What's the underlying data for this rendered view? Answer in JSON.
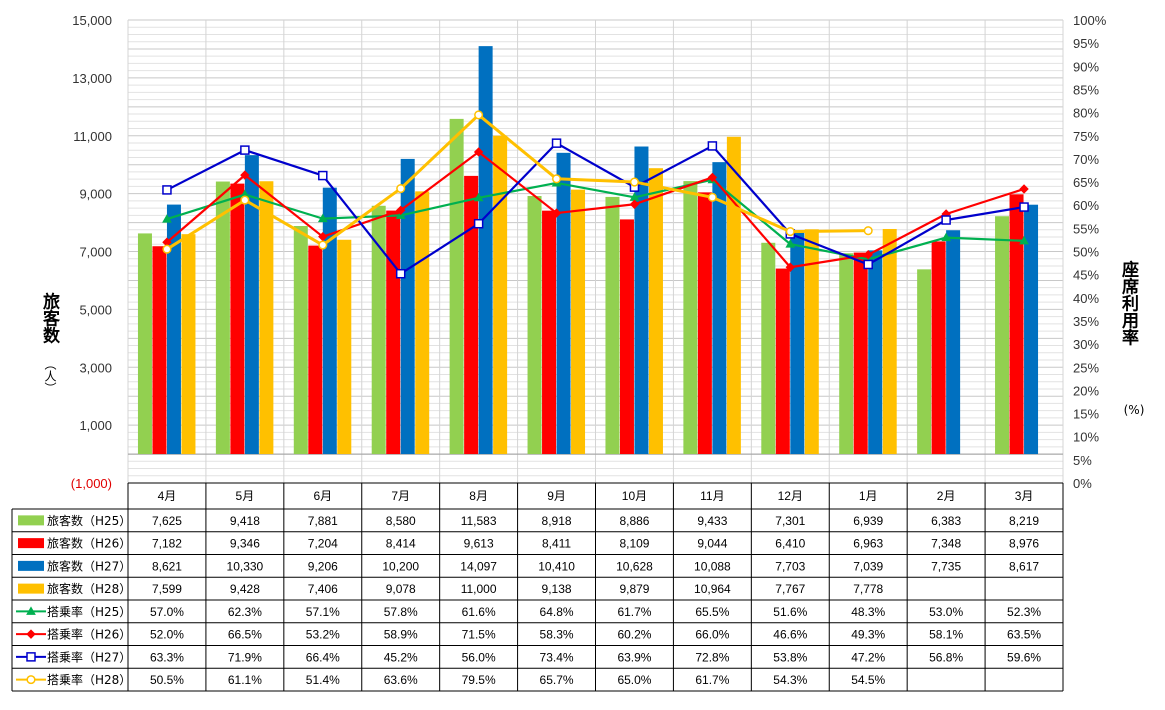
{
  "chart_data": {
    "type": "bar+line",
    "categories": [
      "4月",
      "5月",
      "6月",
      "7月",
      "8月",
      "9月",
      "10月",
      "11月",
      "12月",
      "1月",
      "2月",
      "3月"
    ],
    "ylabel": "旅客数",
    "ylabel_unit": "（人）",
    "y2label": "座席利用率",
    "y2label_unit": "(%)",
    "ylim": [
      -1000,
      15000
    ],
    "y_ticks": [
      {
        "value": 15000,
        "label": "15,000"
      },
      {
        "value": 13000,
        "label": "13,000"
      },
      {
        "value": 11000,
        "label": "11,000"
      },
      {
        "value": 9000,
        "label": "9,000"
      },
      {
        "value": 7000,
        "label": "7,000"
      },
      {
        "value": 5000,
        "label": "5,000"
      },
      {
        "value": 3000,
        "label": "3,000"
      },
      {
        "value": 1000,
        "label": "1,000"
      },
      {
        "value": -1000,
        "label": "(1,000)"
      }
    ],
    "y2lim": [
      0,
      100
    ],
    "y2_ticks": [
      "0%",
      "5%",
      "10%",
      "15%",
      "20%",
      "25%",
      "30%",
      "35%",
      "40%",
      "45%",
      "50%",
      "55%",
      "60%",
      "65%",
      "70%",
      "75%",
      "80%",
      "85%",
      "90%",
      "95%",
      "100%"
    ],
    "grid": true,
    "bar_series": [
      {
        "name": "旅客数（H25）",
        "color": "#92d050",
        "values": [
          7625,
          9418,
          7881,
          8580,
          11583,
          8918,
          8886,
          9433,
          7301,
          6939,
          6383,
          8219
        ],
        "labels": [
          "7,625",
          "9,418",
          "7,881",
          "8,580",
          "11,583",
          "8,918",
          "8,886",
          "9,433",
          "7,301",
          "6,939",
          "6,383",
          "8,219"
        ]
      },
      {
        "name": "旅客数（H26）",
        "color": "#ff0000",
        "values": [
          7182,
          9346,
          7204,
          8414,
          9613,
          8411,
          8109,
          9044,
          6410,
          6963,
          7348,
          8976
        ],
        "labels": [
          "7,182",
          "9,346",
          "7,204",
          "8,414",
          "9,613",
          "8,411",
          "8,109",
          "9,044",
          "6,410",
          "6,963",
          "7,348",
          "8,976"
        ]
      },
      {
        "name": "旅客数（H27）",
        "color": "#0070c0",
        "values": [
          8621,
          10330,
          9206,
          10200,
          14097,
          10410,
          10628,
          10088,
          7703,
          7039,
          7735,
          8617
        ],
        "labels": [
          "8,621",
          "10,330",
          "9,206",
          "10,200",
          "14,097",
          "10,410",
          "10,628",
          "10,088",
          "7,703",
          "7,039",
          "7,735",
          "8,617"
        ]
      },
      {
        "name": "旅客数（H28）",
        "color": "#ffc000",
        "values": [
          7599,
          9428,
          7406,
          9078,
          11000,
          9138,
          9879,
          10964,
          7767,
          7778,
          null,
          null
        ],
        "labels": [
          "7,599",
          "9,428",
          "7,406",
          "9,078",
          "11,000",
          "9,138",
          "9,879",
          "10,964",
          "7,767",
          "7,778",
          "",
          ""
        ]
      }
    ],
    "line_series": [
      {
        "name": "搭乗率（H25）",
        "color": "#00b050",
        "marker": "triangle",
        "values": [
          57.0,
          62.3,
          57.1,
          57.8,
          61.6,
          64.8,
          61.7,
          65.5,
          51.6,
          48.3,
          53.0,
          52.3
        ],
        "labels": [
          "57.0%",
          "62.3%",
          "57.1%",
          "57.8%",
          "61.6%",
          "64.8%",
          "61.7%",
          "65.5%",
          "51.6%",
          "48.3%",
          "53.0%",
          "52.3%"
        ]
      },
      {
        "name": "搭乗率（H26）",
        "color": "#ff0000",
        "marker": "diamond",
        "values": [
          52.0,
          66.5,
          53.2,
          58.9,
          71.5,
          58.3,
          60.2,
          66.0,
          46.6,
          49.3,
          58.1,
          63.5
        ],
        "labels": [
          "52.0%",
          "66.5%",
          "53.2%",
          "58.9%",
          "71.5%",
          "58.3%",
          "60.2%",
          "66.0%",
          "46.6%",
          "49.3%",
          "58.1%",
          "63.5%"
        ]
      },
      {
        "name": "搭乗率（H27）",
        "color": "#0000cc",
        "marker": "square",
        "values": [
          63.3,
          71.9,
          66.4,
          45.2,
          56.0,
          73.4,
          63.9,
          72.8,
          53.8,
          47.2,
          56.8,
          59.6
        ],
        "labels": [
          "63.3%",
          "71.9%",
          "66.4%",
          "45.2%",
          "56.0%",
          "73.4%",
          "63.9%",
          "72.8%",
          "53.8%",
          "47.2%",
          "56.8%",
          "59.6%"
        ]
      },
      {
        "name": "搭乗率（H28）",
        "color": "#ffc000",
        "marker": "circle",
        "values": [
          50.5,
          61.1,
          51.4,
          63.6,
          79.5,
          65.7,
          65.0,
          61.7,
          54.3,
          54.5,
          null,
          null
        ],
        "labels": [
          "50.5%",
          "61.1%",
          "51.4%",
          "63.6%",
          "79.5%",
          "65.7%",
          "65.0%",
          "61.7%",
          "54.3%",
          "54.5%",
          "",
          ""
        ]
      }
    ]
  }
}
